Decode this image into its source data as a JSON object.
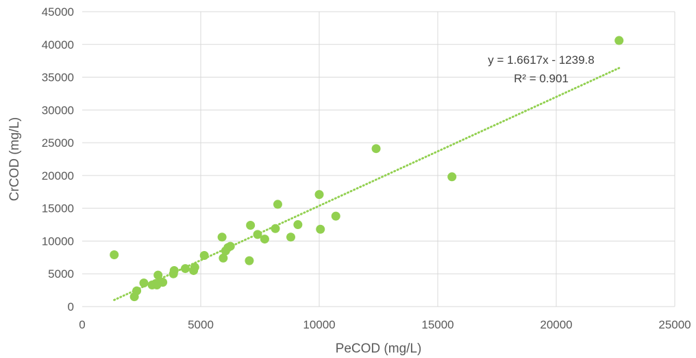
{
  "chart_data": {
    "type": "scatter",
    "title": "",
    "xlabel": "PeCOD (mg/L)",
    "ylabel": "CrCOD (mg/L)",
    "xlim": [
      0,
      25000
    ],
    "ylim": [
      0,
      45000
    ],
    "x_ticks": [
      0,
      5000,
      10000,
      15000,
      20000,
      25000
    ],
    "y_ticks": [
      0,
      5000,
      10000,
      15000,
      20000,
      25000,
      30000,
      35000,
      40000,
      45000
    ],
    "grid": true,
    "legend": "none",
    "point_color": "#92d050",
    "series": [
      {
        "points": [
          {
            "x": 1350,
            "y": 7900
          },
          {
            "x": 2200,
            "y": 1500
          },
          {
            "x": 2300,
            "y": 2400
          },
          {
            "x": 2600,
            "y": 3600
          },
          {
            "x": 2950,
            "y": 3300
          },
          {
            "x": 3100,
            "y": 3500
          },
          {
            "x": 3150,
            "y": 3300
          },
          {
            "x": 3200,
            "y": 4800
          },
          {
            "x": 3400,
            "y": 3700
          },
          {
            "x": 3850,
            "y": 5000
          },
          {
            "x": 3880,
            "y": 5500
          },
          {
            "x": 4350,
            "y": 5800
          },
          {
            "x": 4700,
            "y": 5500
          },
          {
            "x": 4750,
            "y": 6000
          },
          {
            "x": 5150,
            "y": 7800
          },
          {
            "x": 5900,
            "y": 10600
          },
          {
            "x": 5950,
            "y": 7400
          },
          {
            "x": 6050,
            "y": 8500
          },
          {
            "x": 6150,
            "y": 9000
          },
          {
            "x": 6250,
            "y": 9200
          },
          {
            "x": 7050,
            "y": 7000
          },
          {
            "x": 7100,
            "y": 12400
          },
          {
            "x": 7400,
            "y": 11000
          },
          {
            "x": 7700,
            "y": 10300
          },
          {
            "x": 8150,
            "y": 11900
          },
          {
            "x": 8250,
            "y": 15600
          },
          {
            "x": 8800,
            "y": 10600
          },
          {
            "x": 9100,
            "y": 12500
          },
          {
            "x": 10000,
            "y": 17100
          },
          {
            "x": 10050,
            "y": 11800
          },
          {
            "x": 10700,
            "y": 13800
          },
          {
            "x": 12400,
            "y": 24100
          },
          {
            "x": 15600,
            "y": 19800
          },
          {
            "x": 22650,
            "y": 40600
          }
        ]
      }
    ],
    "trendline": {
      "type": "linear",
      "slope": 1.6617,
      "intercept": -1239.8,
      "x_range": [
        1350,
        22650
      ],
      "color": "#92d050",
      "style": "dotted",
      "equation_label": "y = 1.6617x - 1239.8",
      "r2_label": "R² = 0.901"
    }
  }
}
